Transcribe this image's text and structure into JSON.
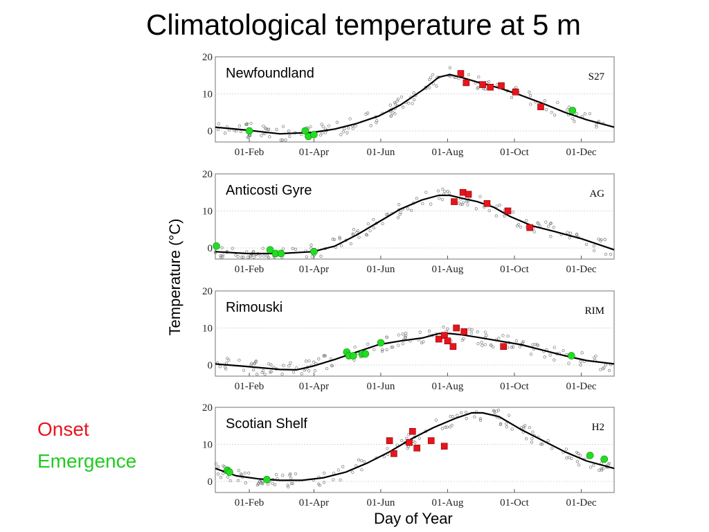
{
  "title": "Climatological temperature at 5 m",
  "ylabel": "Temperature (°C)",
  "xlabel": "Day of Year",
  "legend": {
    "onset": "Onset",
    "emergence": "Emergence"
  },
  "colors": {
    "onset": "#e8141d",
    "emergence": "#22dd22",
    "line": "#000000",
    "obs": "#777777"
  },
  "chart_data": [
    {
      "type": "line",
      "panel": "Newfoundland",
      "code": "S27",
      "x_ticks": [
        "01-Feb",
        "01-Apr",
        "01-Jun",
        "01-Aug",
        "01-Oct",
        "01-Dec"
      ],
      "x_tick_days": [
        32,
        91,
        152,
        213,
        274,
        335
      ],
      "xlim": [
        1,
        365
      ],
      "ylim": [
        -3,
        20
      ],
      "y_ticks": [
        0,
        10,
        20
      ],
      "grid": true,
      "climatology": {
        "day": [
          1,
          30,
          60,
          90,
          110,
          130,
          150,
          170,
          190,
          205,
          215,
          225,
          240,
          260,
          280,
          300,
          320,
          340,
          365
        ],
        "temp": [
          1,
          0.2,
          -0.8,
          -0.4,
          0.5,
          2,
          4,
          7,
          11,
          14.5,
          15.2,
          14.5,
          13.2,
          11.6,
          9.6,
          7.4,
          5,
          3,
          1
        ]
      },
      "onset": {
        "day": [
          225,
          230,
          245,
          252,
          262,
          275,
          298
        ],
        "temp": [
          15.5,
          13,
          12.5,
          11.8,
          12.2,
          10.5,
          6.5
        ]
      },
      "emergence": {
        "day": [
          32,
          83,
          86,
          91,
          327
        ],
        "temp": [
          0,
          0,
          -1.5,
          -1,
          5.5
        ]
      }
    },
    {
      "type": "line",
      "panel": "Anticosti Gyre",
      "code": "AG",
      "x_ticks": [
        "01-Feb",
        "01-Apr",
        "01-Jun",
        "01-Aug",
        "01-Oct",
        "01-Dec"
      ],
      "x_tick_days": [
        32,
        91,
        152,
        213,
        274,
        335
      ],
      "xlim": [
        1,
        365
      ],
      "ylim": [
        -3,
        20
      ],
      "y_ticks": [
        0,
        10,
        20
      ],
      "grid": true,
      "climatology": {
        "day": [
          1,
          30,
          60,
          90,
          110,
          130,
          150,
          170,
          190,
          205,
          215,
          225,
          240,
          255,
          270,
          290,
          310,
          335,
          365
        ],
        "temp": [
          -1,
          -1.5,
          -1.5,
          -1,
          0.5,
          3.5,
          7,
          10.5,
          13,
          14.2,
          14.2,
          13.5,
          12.5,
          11,
          8.5,
          6,
          4.5,
          2.5,
          -0.5
        ]
      },
      "onset": {
        "day": [
          219,
          227,
          232,
          249,
          268,
          288
        ],
        "temp": [
          12.5,
          15,
          14.5,
          12,
          10,
          5.5
        ]
      },
      "emergence": {
        "day": [
          2,
          51,
          56,
          61,
          91
        ],
        "temp": [
          0.5,
          -0.5,
          -1.5,
          -1.5,
          -1
        ]
      }
    },
    {
      "type": "line",
      "panel": "Rimouski",
      "code": "RIM",
      "x_ticks": [
        "01-Feb",
        "01-Apr",
        "01-Jun",
        "01-Aug",
        "01-Oct",
        "01-Dec"
      ],
      "x_tick_days": [
        32,
        91,
        152,
        213,
        274,
        335
      ],
      "xlim": [
        1,
        365
      ],
      "ylim": [
        -3,
        20
      ],
      "y_ticks": [
        0,
        10,
        20
      ],
      "grid": true,
      "climatology": {
        "day": [
          1,
          30,
          60,
          75,
          90,
          110,
          130,
          150,
          170,
          190,
          205,
          215,
          225,
          240,
          260,
          280,
          300,
          320,
          340,
          365
        ],
        "temp": [
          0.3,
          -0.4,
          -1.2,
          -1.3,
          -0.3,
          1.5,
          3.5,
          5.5,
          6.5,
          7.3,
          8.5,
          8.5,
          8.2,
          7.5,
          6.5,
          5.5,
          4,
          2.5,
          1.2,
          0.3
        ]
      },
      "onset": {
        "day": [
          205,
          210,
          213,
          218,
          221,
          228,
          264
        ],
        "temp": [
          7,
          8,
          6.5,
          5,
          10,
          9,
          5
        ]
      },
      "emergence": {
        "day": [
          121,
          123,
          127,
          135,
          138,
          152,
          326
        ],
        "temp": [
          3.5,
          2.5,
          2.5,
          3,
          3,
          6,
          2.5
        ]
      }
    },
    {
      "type": "line",
      "panel": "Scotian Shelf",
      "code": "H2",
      "x_ticks": [
        "01-Feb",
        "01-Apr",
        "01-Jun",
        "01-Aug",
        "01-Oct",
        "01-Dec"
      ],
      "x_tick_days": [
        32,
        91,
        152,
        213,
        274,
        335
      ],
      "xlim": [
        1,
        365
      ],
      "ylim": [
        -3,
        20
      ],
      "y_ticks": [
        0,
        10,
        20
      ],
      "grid": true,
      "climatology": {
        "day": [
          1,
          20,
          40,
          60,
          80,
          100,
          120,
          140,
          160,
          180,
          200,
          220,
          235,
          245,
          260,
          280,
          300,
          320,
          340,
          365
        ],
        "temp": [
          3.5,
          1.5,
          0.7,
          0.3,
          0.3,
          1,
          2.5,
          5,
          8,
          11.5,
          14.5,
          17,
          18.5,
          18.5,
          17.5,
          14,
          11,
          8,
          5.5,
          3.5
        ]
      },
      "onset": {
        "day": [
          160,
          164,
          178,
          181,
          185,
          198,
          210
        ],
        "temp": [
          11,
          7.5,
          10.5,
          13.5,
          9,
          11,
          9.5
        ]
      },
      "emergence": {
        "day": [
          12,
          14,
          48,
          343,
          356
        ],
        "temp": [
          3,
          2.5,
          0.5,
          7,
          6
        ]
      }
    }
  ]
}
